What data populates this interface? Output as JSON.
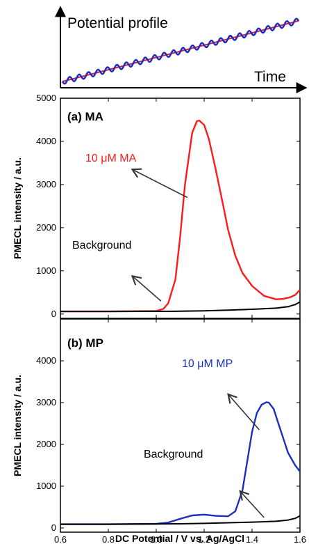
{
  "profile": {
    "title": "Potential profile",
    "xlabel": "Time",
    "colors": {
      "dc_ramp": "#e8202a",
      "ac_wave": "#1a2fbf"
    }
  },
  "chart_data": [
    {
      "type": "line",
      "panel_label": "(a) MA",
      "xlabel": "DC Potential / V vs. Ag/AgCl",
      "ylabel": "PMECL intensity / a.u.",
      "xlim": [
        0.6,
        1.6
      ],
      "ylim": [
        -100,
        5000
      ],
      "yticks": [
        0,
        1000,
        2000,
        3000,
        4000,
        5000
      ],
      "xticks": [
        0.6,
        0.8,
        1.0,
        1.2,
        1.4,
        1.6
      ],
      "series": [
        {
          "name": "10 μM MA",
          "color": "#ff1a1a",
          "x": [
            0.6,
            0.8,
            1.0,
            1.03,
            1.05,
            1.08,
            1.1,
            1.12,
            1.15,
            1.17,
            1.18,
            1.2,
            1.22,
            1.25,
            1.28,
            1.3,
            1.33,
            1.36,
            1.4,
            1.45,
            1.5,
            1.53,
            1.56,
            1.58,
            1.6
          ],
          "y": [
            60,
            60,
            70,
            120,
            250,
            800,
            1800,
            3000,
            4200,
            4470,
            4480,
            4380,
            4050,
            3300,
            2500,
            1950,
            1350,
            950,
            650,
            420,
            340,
            350,
            390,
            440,
            560
          ]
        },
        {
          "name": "Background",
          "color": "#000000",
          "x": [
            0.6,
            0.8,
            1.0,
            1.1,
            1.2,
            1.3,
            1.4,
            1.5,
            1.55,
            1.58,
            1.6
          ],
          "y": [
            60,
            60,
            62,
            65,
            75,
            90,
            110,
            135,
            170,
            220,
            280
          ]
        }
      ],
      "annotations": [
        {
          "text": "10 μM MA",
          "color": "#ff1a1a",
          "arrow_from": [
            1.13,
            2700
          ],
          "arrow_to": [
            0.9,
            3350
          ]
        },
        {
          "text": "Background",
          "color": "#000000",
          "arrow_from": [
            1.02,
            300
          ],
          "arrow_to": [
            0.9,
            880
          ]
        }
      ]
    },
    {
      "type": "line",
      "panel_label": "(b) MP",
      "xlabel": "DC Potential / V vs. Ag/AgCl",
      "ylabel": "PMECL intensity / a.u.",
      "xlim": [
        0.6,
        1.6
      ],
      "ylim": [
        -100,
        5000
      ],
      "yticks": [
        0,
        1000,
        2000,
        3000,
        4000
      ],
      "xticks": [
        0.6,
        0.8,
        1.0,
        1.2,
        1.4,
        1.6
      ],
      "series": [
        {
          "name": "10 μM MP",
          "color": "#1a2fbf",
          "x": [
            0.6,
            0.8,
            1.0,
            1.05,
            1.1,
            1.15,
            1.2,
            1.25,
            1.3,
            1.33,
            1.36,
            1.38,
            1.4,
            1.42,
            1.44,
            1.46,
            1.47,
            1.49,
            1.51,
            1.53,
            1.55,
            1.58,
            1.6
          ],
          "y": [
            90,
            90,
            100,
            130,
            220,
            300,
            320,
            290,
            280,
            400,
            900,
            1600,
            2300,
            2750,
            2950,
            3010,
            3000,
            2850,
            2500,
            2150,
            1800,
            1500,
            1350
          ]
        },
        {
          "name": "Background",
          "color": "#000000",
          "x": [
            0.6,
            0.8,
            1.0,
            1.1,
            1.2,
            1.3,
            1.4,
            1.5,
            1.55,
            1.58,
            1.6
          ],
          "y": [
            90,
            90,
            95,
            100,
            110,
            125,
            140,
            160,
            190,
            230,
            290
          ]
        }
      ],
      "annotations": [
        {
          "text": "10 μM MP",
          "color": "#1a2fbf",
          "arrow_from": [
            1.43,
            2350
          ],
          "arrow_to": [
            1.3,
            3200
          ]
        },
        {
          "text": "Background",
          "color": "#000000",
          "arrow_from": [
            1.45,
            250
          ],
          "arrow_to": [
            1.35,
            880
          ]
        }
      ]
    }
  ]
}
